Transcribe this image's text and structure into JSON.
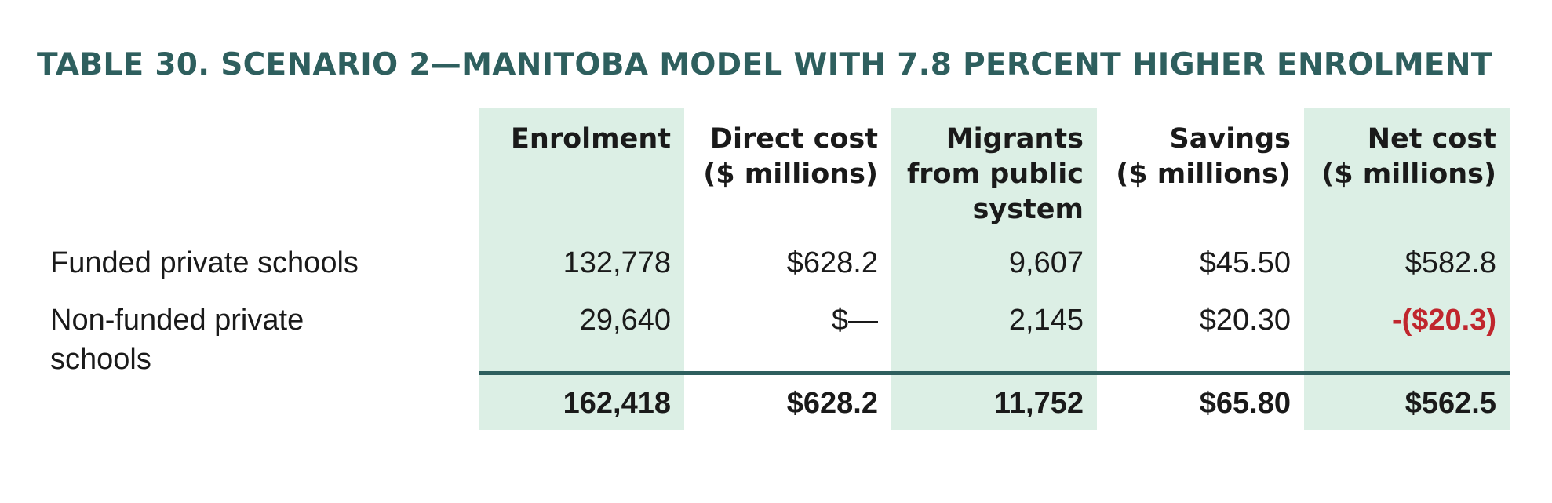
{
  "table": {
    "title": "TABLE 30. SCENARIO 2—MANITOBA MODEL WITH 7.8 PERCENT HIGHER ENROLMENT",
    "columns": [
      "Enrolment",
      "Direct cost\n($ millions)",
      "Migrants\nfrom public\nsystem",
      "Savings\n($ millions)",
      "Net cost\n($ millions)"
    ],
    "rows": [
      {
        "label": "Funded private schools",
        "cells": [
          "132,778",
          "$628.2",
          "9,607",
          "$45.50",
          "$582.8"
        ]
      },
      {
        "label": "Non-funded private\nschools",
        "cells": [
          "29,640",
          "$—",
          "2,145",
          "$20.30",
          "-($20.3)"
        ]
      }
    ],
    "totals": [
      "162,418",
      "$628.2",
      "11,752",
      "$65.80",
      "$562.5"
    ]
  },
  "colors": {
    "title": "#2e5f5e",
    "shade": "#dcefe5",
    "rule": "#2e5f5e",
    "negative": "#c0262d"
  }
}
